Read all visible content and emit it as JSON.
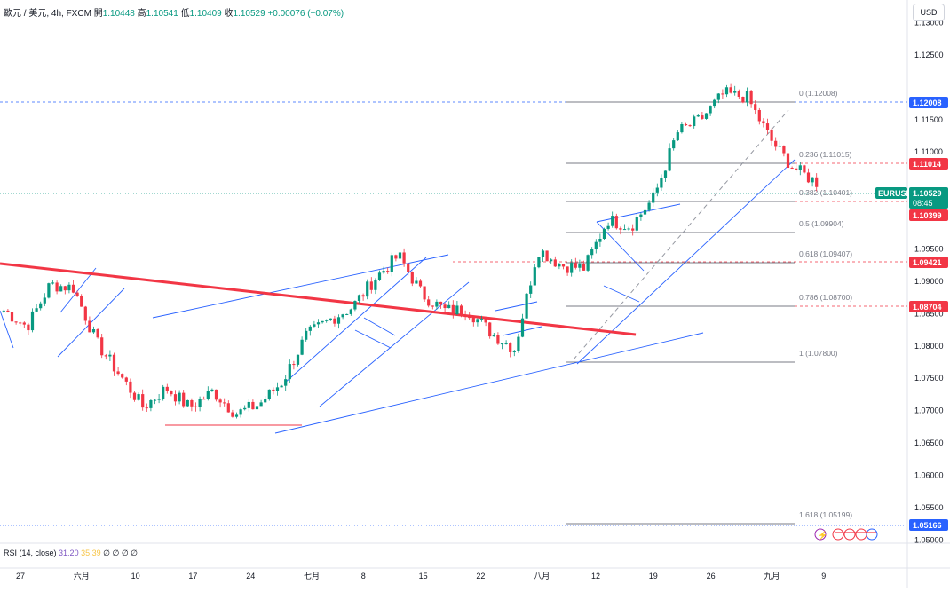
{
  "header": {
    "symbol": "歐元 / 美元, 4h, FXCM",
    "open_label": "開",
    "open": "1.10448",
    "high_label": "高",
    "high": "1.10541",
    "low_label": "低",
    "low": "1.10409",
    "close_label": "收",
    "close": "1.10529",
    "change": "+0.00076 (+0.07%)"
  },
  "currency_button": "USD",
  "price_axis": {
    "ticks": [
      "1.13000",
      "1.12500",
      "1.11500",
      "1.11000",
      "1.10000",
      "1.09500",
      "1.09000",
      "1.08500",
      "1.08000",
      "1.07500",
      "1.07000",
      "1.06500",
      "1.06000",
      "1.05500",
      "1.05000"
    ],
    "labels": [
      {
        "text": "1.12008",
        "color": "#2962ff"
      },
      {
        "text": "1.11014",
        "color": "#f23645"
      },
      {
        "text": "EURUSD",
        "color": "#089981"
      },
      {
        "text": "1.10529",
        "color": "#089981"
      },
      {
        "text": "08:45",
        "color": "#089981"
      },
      {
        "text": "1.10399",
        "color": "#f23645"
      },
      {
        "text": "1.09421",
        "color": "#f23645"
      },
      {
        "text": "1.08704",
        "color": "#f23645"
      },
      {
        "text": "1.05166",
        "color": "#2962ff"
      }
    ]
  },
  "fib_levels": [
    "0 (1.12008)",
    "0.236 (1.11015)",
    "0.382 (1.10401)",
    "0.5 (1.09904)",
    "0.618 (1.09407)",
    "0.786 (1.08700)",
    "1 (1.07800)",
    "1.618 (1.05199)"
  ],
  "time_axis": [
    "27",
    "六月",
    "10",
    "17",
    "24",
    "七月",
    "8",
    "15",
    "22",
    "八月",
    "12",
    "19",
    "26",
    "九月",
    "9"
  ],
  "rsi": {
    "label": "RSI (14, close)",
    "value": "31.20",
    "ma": "35.39",
    "icons": "∅ ∅ ∅ ∅"
  },
  "colors": {
    "up": "#089981",
    "down": "#f23645",
    "trend": "#f23645",
    "channel": "#2962ff",
    "fib": "#787b86"
  },
  "chart_data": {
    "type": "candlestick",
    "symbol": "EURUSD",
    "timeframe": "4h",
    "ylim": [
      1.0495,
      1.1335
    ],
    "approx_closes": [
      {
        "date": "05-27",
        "close": 1.0855
      },
      {
        "date": "05-30",
        "close": 1.083
      },
      {
        "date": "06-04",
        "close": 1.0895
      },
      {
        "date": "06-06",
        "close": 1.089
      },
      {
        "date": "06-07",
        "close": 1.0805
      },
      {
        "date": "06-11",
        "close": 1.0755
      },
      {
        "date": "06-14",
        "close": 1.0705
      },
      {
        "date": "06-18",
        "close": 1.0735
      },
      {
        "date": "06-20",
        "close": 1.0705
      },
      {
        "date": "06-24",
        "close": 1.073
      },
      {
        "date": "06-26",
        "close": 1.0695
      },
      {
        "date": "06-28",
        "close": 1.071
      },
      {
        "date": "07-02",
        "close": 1.0745
      },
      {
        "date": "07-05",
        "close": 1.0815
      },
      {
        "date": "07-08",
        "close": 1.084
      },
      {
        "date": "07-11",
        "close": 1.086
      },
      {
        "date": "07-15",
        "close": 1.0905
      },
      {
        "date": "07-17",
        "close": 1.094
      },
      {
        "date": "07-19",
        "close": 1.088
      },
      {
        "date": "07-23",
        "close": 1.0855
      },
      {
        "date": "07-26",
        "close": 1.0855
      },
      {
        "date": "07-30",
        "close": 1.082
      },
      {
        "date": "08-01",
        "close": 1.0795
      },
      {
        "date": "08-05",
        "close": 1.095
      },
      {
        "date": "08-07",
        "close": 1.0925
      },
      {
        "date": "08-09",
        "close": 1.092
      },
      {
        "date": "08-13",
        "close": 1.0995
      },
      {
        "date": "08-15",
        "close": 1.0985
      },
      {
        "date": "08-18",
        "close": 1.103
      },
      {
        "date": "08-21",
        "close": 1.113
      },
      {
        "date": "08-23",
        "close": 1.115
      },
      {
        "date": "08-26",
        "close": 1.119
      },
      {
        "date": "08-27",
        "close": 1.1185
      },
      {
        "date": "08-28",
        "close": 1.112
      },
      {
        "date": "08-29",
        "close": 1.1075
      },
      {
        "date": "08-30",
        "close": 1.1053
      }
    ]
  }
}
